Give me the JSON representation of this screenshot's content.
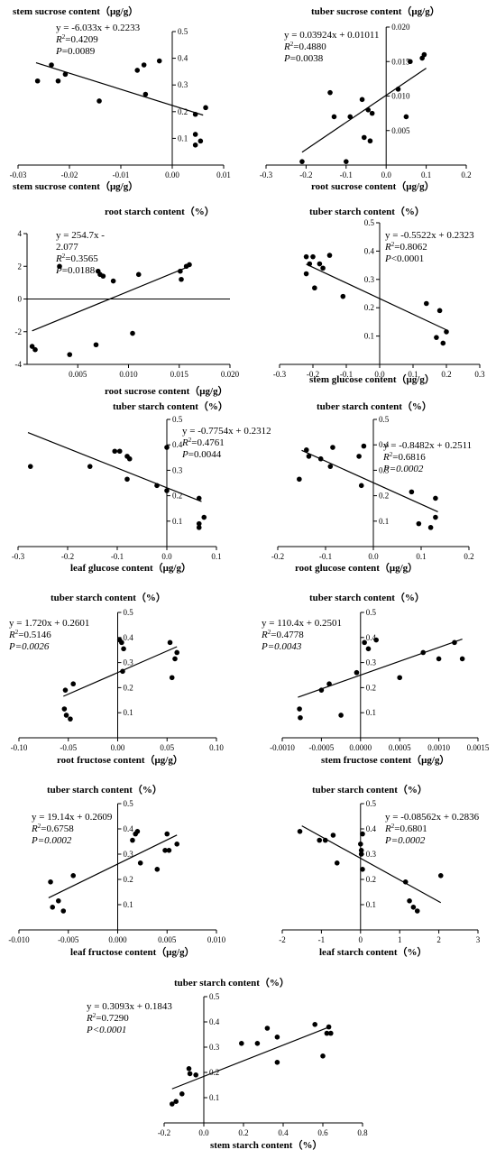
{
  "chart_data": [
    {
      "type": "scatter",
      "title": "stem sucrose content（μg/g）",
      "xlabel": "stem sucrose content（μg/g）",
      "ylabel": "",
      "xlim": [
        -0.03,
        0.01
      ],
      "ylim": [
        0,
        0.5
      ],
      "xticks": [
        "-0.03",
        "-0.02",
        "-0.01",
        "0.00",
        "0.01"
      ],
      "yticks": [
        "0.1",
        "0.2",
        "0.3",
        "0.4",
        "0.5"
      ],
      "equation": "y = -6.033x + 0.2233",
      "r2": "0.4209",
      "p": "0.0089",
      "fit": {
        "slope": -6.033,
        "intercept": 0.2233,
        "x_range": [
          -0.0265,
          0.006
        ]
      },
      "points": [
        [
          -0.0262,
          0.315
        ],
        [
          -0.0235,
          0.375
        ],
        [
          -0.0222,
          0.315
        ],
        [
          -0.0208,
          0.34
        ],
        [
          -0.0142,
          0.24
        ],
        [
          -0.0068,
          0.355
        ],
        [
          -0.0055,
          0.375
        ],
        [
          -0.0052,
          0.265
        ],
        [
          -0.0025,
          0.39
        ],
        [
          0.0045,
          0.19
        ],
        [
          0.0045,
          0.115
        ],
        [
          0.0045,
          0.075
        ],
        [
          0.0055,
          0.09
        ],
        [
          0.0065,
          0.215
        ]
      ]
    },
    {
      "type": "scatter",
      "title": "tuber sucrose content（μg/g）",
      "xlabel": "root sucrose content（μg/g）",
      "ylabel": "",
      "xlim": [
        -0.3,
        0.2
      ],
      "ylim": [
        0,
        0.02
      ],
      "xticks": [
        "-0.3",
        "-0.2",
        "-0.1",
        "0.0",
        "0.1",
        "0.2"
      ],
      "yticks": [
        "0.005",
        "0.010",
        "0.015",
        "0.020"
      ],
      "equation": "y = 0.03924x + 0.01011",
      "r2": "0.4880",
      "p": "0.0038",
      "fit": {
        "slope": 0.03924,
        "intercept": 0.01011,
        "x_range": [
          -0.21,
          0.1
        ]
      },
      "points": [
        [
          -0.21,
          0.0005
        ],
        [
          -0.14,
          0.0105
        ],
        [
          -0.13,
          0.007
        ],
        [
          -0.1,
          0.0005
        ],
        [
          -0.09,
          0.007
        ],
        [
          -0.06,
          0.0095
        ],
        [
          -0.055,
          0.004
        ],
        [
          -0.045,
          0.008
        ],
        [
          -0.04,
          0.0035
        ],
        [
          -0.035,
          0.0075
        ],
        [
          0.03,
          0.011
        ],
        [
          0.05,
          0.007
        ],
        [
          0.06,
          0.015
        ],
        [
          0.09,
          0.0155
        ],
        [
          0.095,
          0.016
        ]
      ]
    },
    {
      "type": "scatter",
      "title": "root starch content（%）",
      "xlabel": "root sucrose content（μg/g）",
      "ylabel": "",
      "xlim": [
        0,
        0.02
      ],
      "ylim": [
        -4,
        4
      ],
      "xticks": [
        "0.005",
        "0.010",
        "0.015",
        "0.020"
      ],
      "yticks": [
        "-4",
        "-2",
        "0",
        "2",
        "4"
      ],
      "equation": "y = 254.7x -",
      "equation2": "2.077",
      "r2": "0.3565",
      "p": "0.0188",
      "fit": {
        "slope": 254.7,
        "intercept": -2.077,
        "x_range": [
          0.0005,
          0.0158
        ]
      },
      "points": [
        [
          0.0005,
          -2.9
        ],
        [
          0.0008,
          -3.1
        ],
        [
          0.0032,
          2.0
        ],
        [
          0.0042,
          -3.4
        ],
        [
          0.0068,
          -2.8
        ],
        [
          0.007,
          1.7
        ],
        [
          0.0072,
          1.5
        ],
        [
          0.0075,
          1.4
        ],
        [
          0.0085,
          1.1
        ],
        [
          0.0104,
          -2.1
        ],
        [
          0.011,
          1.5
        ],
        [
          0.0151,
          1.7
        ],
        [
          0.0152,
          1.2
        ],
        [
          0.0157,
          2.0
        ],
        [
          0.016,
          2.1
        ]
      ]
    },
    {
      "type": "scatter",
      "title": "tuber starch content（%）",
      "xlabel": "stem glucose content（μg/g）",
      "ylabel": "",
      "xlim": [
        -0.3,
        0.3
      ],
      "ylim": [
        0,
        0.5
      ],
      "xticks": [
        "-0.3",
        "-0.2",
        "-0.1",
        "0.0",
        "0.1",
        "0.2",
        "0.3"
      ],
      "yticks": [
        "0.1",
        "0.2",
        "0.3",
        "0.4",
        "0.5"
      ],
      "equation": "y = -0.5522x + 0.2323",
      "r2": "0.8062",
      "p": "<0.0001",
      "p_sep": "",
      "fit": {
        "slope": -0.5522,
        "intercept": 0.2323,
        "x_range": [
          -0.22,
          0.2
        ]
      },
      "points": [
        [
          -0.22,
          0.38
        ],
        [
          -0.22,
          0.32
        ],
        [
          -0.21,
          0.355
        ],
        [
          -0.2,
          0.38
        ],
        [
          -0.195,
          0.27
        ],
        [
          -0.18,
          0.355
        ],
        [
          -0.17,
          0.34
        ],
        [
          -0.15,
          0.385
        ],
        [
          -0.11,
          0.24
        ],
        [
          0.14,
          0.215
        ],
        [
          0.17,
          0.095
        ],
        [
          0.18,
          0.19
        ],
        [
          0.19,
          0.075
        ],
        [
          0.2,
          0.115
        ]
      ]
    },
    {
      "type": "scatter",
      "title": "tuber starch content（%）",
      "xlabel": "leaf glucose content（μg/g）",
      "ylabel": "",
      "xlim": [
        -0.3,
        0.1
      ],
      "ylim": [
        0,
        0.5
      ],
      "xticks": [
        "-0.3",
        "-0.2",
        "-0.1",
        "0.0",
        "0.1"
      ],
      "yticks": [
        "0.1",
        "0.2",
        "0.3",
        "0.4",
        "0.5"
      ],
      "equation": "y = -0.7754x + 0.2312",
      "r2": "0.4761",
      "p": "0.0044",
      "fit": {
        "slope": -0.7754,
        "intercept": 0.2312,
        "x_range": [
          -0.28,
          0.07
        ]
      },
      "points": [
        [
          -0.275,
          0.315
        ],
        [
          -0.155,
          0.315
        ],
        [
          -0.105,
          0.375
        ],
        [
          -0.095,
          0.375
        ],
        [
          -0.08,
          0.355
        ],
        [
          -0.075,
          0.345
        ],
        [
          -0.08,
          0.265
        ],
        [
          -0.02,
          0.24
        ],
        [
          0.0,
          0.22
        ],
        [
          0.0,
          0.39
        ],
        [
          0.065,
          0.19
        ],
        [
          0.065,
          0.09
        ],
        [
          0.065,
          0.075
        ],
        [
          0.075,
          0.115
        ]
      ]
    },
    {
      "type": "scatter",
      "title": "tuber starch content（%）",
      "xlabel": "root glucose content（μg/g）",
      "ylabel": "",
      "xlim": [
        -0.2,
        0.2
      ],
      "ylim": [
        0,
        0.5
      ],
      "xticks": [
        "-0.2",
        "-0.1",
        "0.0",
        "0.1",
        "0.2"
      ],
      "yticks": [
        "0.1",
        "0.2",
        "0.3",
        "0.4",
        "0.5"
      ],
      "equation": "y = -0.8482x + 0.2511",
      "r2": "0.6816",
      "p": "0.0002",
      "p_italic": true,
      "fit": {
        "slope": -0.8482,
        "intercept": 0.2511,
        "x_range": [
          -0.15,
          0.135
        ]
      },
      "points": [
        [
          -0.155,
          0.265
        ],
        [
          -0.14,
          0.38
        ],
        [
          -0.135,
          0.355
        ],
        [
          -0.11,
          0.345
        ],
        [
          -0.09,
          0.315
        ],
        [
          -0.085,
          0.39
        ],
        [
          -0.03,
          0.355
        ],
        [
          -0.025,
          0.24
        ],
        [
          -0.02,
          0.395
        ],
        [
          0.08,
          0.215
        ],
        [
          0.095,
          0.09
        ],
        [
          0.12,
          0.075
        ],
        [
          0.13,
          0.115
        ],
        [
          0.13,
          0.19
        ]
      ]
    },
    {
      "type": "scatter",
      "title": "tuber starch content（%）",
      "xlabel": "root fructose content（μg/g）",
      "ylabel": "",
      "xlim": [
        -0.1,
        0.1
      ],
      "ylim": [
        0,
        0.5
      ],
      "xticks": [
        "-0.10",
        "-0.05",
        "0.00",
        "0.05",
        "0.10"
      ],
      "yticks": [
        "0.1",
        "0.2",
        "0.3",
        "0.4",
        "0.5"
      ],
      "equation": "y = 1.720x + 0.2601",
      "r2": "0.5146",
      "p": "0.0026",
      "p_italic": true,
      "fit": {
        "slope": 1.72,
        "intercept": 0.2601,
        "x_range": [
          -0.055,
          0.06
        ]
      },
      "points": [
        [
          -0.054,
          0.115
        ],
        [
          -0.053,
          0.19
        ],
        [
          -0.052,
          0.09
        ],
        [
          -0.048,
          0.075
        ],
        [
          -0.045,
          0.215
        ],
        [
          0.002,
          0.39
        ],
        [
          0.004,
          0.38
        ],
        [
          0.005,
          0.265
        ],
        [
          0.006,
          0.355
        ],
        [
          0.053,
          0.38
        ],
        [
          0.055,
          0.24
        ],
        [
          0.058,
          0.315
        ],
        [
          0.06,
          0.34
        ]
      ]
    },
    {
      "type": "scatter",
      "title": "tuber starch content（%）",
      "xlabel": "stem fructose content（μg/g）",
      "ylabel": "",
      "xlim": [
        -0.001,
        0.0015
      ],
      "ylim": [
        0,
        0.5
      ],
      "xticks": [
        "-0.0010",
        "-0.0005",
        "0.0000",
        "0.0005",
        "0.0010",
        "0.0015"
      ],
      "yticks": [
        "0.1",
        "0.2",
        "0.3",
        "0.4",
        "0.5"
      ],
      "equation": "y = 110.4x + 0.2501",
      "r2": "0.4778",
      "p": "0.0043",
      "p_italic": true,
      "fit": {
        "slope": 110.4,
        "intercept": 0.2501,
        "x_range": [
          -0.0008,
          0.0013
        ]
      },
      "points": [
        [
          -0.00078,
          0.115
        ],
        [
          -0.00077,
          0.08
        ],
        [
          -0.0005,
          0.19
        ],
        [
          -0.0004,
          0.215
        ],
        [
          -0.00025,
          0.09
        ],
        [
          -5e-05,
          0.26
        ],
        [
          5e-05,
          0.38
        ],
        [
          0.0001,
          0.355
        ],
        [
          0.0002,
          0.39
        ],
        [
          0.0005,
          0.24
        ],
        [
          0.0008,
          0.34
        ],
        [
          0.001,
          0.315
        ],
        [
          0.0012,
          0.38
        ],
        [
          0.0013,
          0.315
        ]
      ]
    },
    {
      "type": "scatter",
      "title": "tuber starch content（%）",
      "xlabel": "leaf fructose content（μg/g）",
      "ylabel": "",
      "xlim": [
        -0.01,
        0.01
      ],
      "ylim": [
        0,
        0.5
      ],
      "xticks": [
        "-0.010",
        "-0.005",
        "0.000",
        "0.005",
        "0.010"
      ],
      "yticks": [
        "0.1",
        "0.2",
        "0.3",
        "0.4",
        "0.5"
      ],
      "equation": "y = 19.14x + 0.2609",
      "r2": "0.6758",
      "p": "0.0002",
      "p_italic": true,
      "fit": {
        "slope": 19.14,
        "intercept": 0.2609,
        "x_range": [
          -0.007,
          0.006
        ]
      },
      "points": [
        [
          -0.0068,
          0.19
        ],
        [
          -0.0066,
          0.09
        ],
        [
          -0.006,
          0.115
        ],
        [
          -0.0055,
          0.075
        ],
        [
          -0.0045,
          0.215
        ],
        [
          0.0015,
          0.355
        ],
        [
          0.0018,
          0.38
        ],
        [
          0.002,
          0.39
        ],
        [
          0.0023,
          0.265
        ],
        [
          0.004,
          0.24
        ],
        [
          0.0048,
          0.315
        ],
        [
          0.005,
          0.38
        ],
        [
          0.0052,
          0.315
        ],
        [
          0.006,
          0.34
        ]
      ]
    },
    {
      "type": "scatter",
      "title": "tuber starch content（%）",
      "xlabel": "leaf starch content（%）",
      "ylabel": "",
      "xlim": [
        -2,
        3
      ],
      "ylim": [
        0,
        0.5
      ],
      "xticks": [
        "-2",
        "-1",
        "0",
        "1",
        "2",
        "3"
      ],
      "yticks": [
        "0.1",
        "0.2",
        "0.3",
        "0.4",
        "0.5"
      ],
      "equation": "y =  -0.08562x + 0.2836",
      "r2": "0.6801",
      "p": "0.0002",
      "p_italic": true,
      "fit": {
        "slope": -0.08562,
        "intercept": 0.2836,
        "x_range": [
          -1.5,
          2.05
        ]
      },
      "points": [
        [
          -1.55,
          0.39
        ],
        [
          -1.05,
          0.355
        ],
        [
          -0.9,
          0.355
        ],
        [
          -0.7,
          0.375
        ],
        [
          -0.6,
          0.265
        ],
        [
          0.0,
          0.34
        ],
        [
          0.02,
          0.315
        ],
        [
          0.02,
          0.3
        ],
        [
          0.05,
          0.38
        ],
        [
          0.05,
          0.24
        ],
        [
          1.15,
          0.19
        ],
        [
          1.25,
          0.115
        ],
        [
          1.35,
          0.09
        ],
        [
          1.45,
          0.075
        ],
        [
          2.05,
          0.215
        ]
      ]
    },
    {
      "type": "scatter",
      "title": "tuber starch content（%）",
      "xlabel": "stem starch content（%）",
      "ylabel": "",
      "xlim": [
        -0.2,
        0.8
      ],
      "ylim": [
        0,
        0.5
      ],
      "xticks": [
        "-0.2",
        "0.0",
        "0.2",
        "0.4",
        "0.6",
        "0.8"
      ],
      "yticks": [
        "0.1",
        "0.2",
        "0.3",
        "0.4",
        "0.5"
      ],
      "equation": "y = 0.3093x + 0.1843",
      "r2": "0.7290",
      "p": "<0.0001",
      "p_italic": true,
      "p_sep": "",
      "fit": {
        "slope": 0.3093,
        "intercept": 0.1843,
        "x_range": [
          -0.16,
          0.63
        ]
      },
      "points": [
        [
          -0.16,
          0.075
        ],
        [
          -0.14,
          0.085
        ],
        [
          -0.11,
          0.115
        ],
        [
          -0.075,
          0.215
        ],
        [
          -0.07,
          0.195
        ],
        [
          -0.04,
          0.19
        ],
        [
          0.19,
          0.315
        ],
        [
          0.27,
          0.315
        ],
        [
          0.32,
          0.375
        ],
        [
          0.37,
          0.24
        ],
        [
          0.37,
          0.34
        ],
        [
          0.56,
          0.39
        ],
        [
          0.6,
          0.265
        ],
        [
          0.62,
          0.355
        ],
        [
          0.63,
          0.38
        ],
        [
          0.64,
          0.355
        ]
      ]
    }
  ]
}
